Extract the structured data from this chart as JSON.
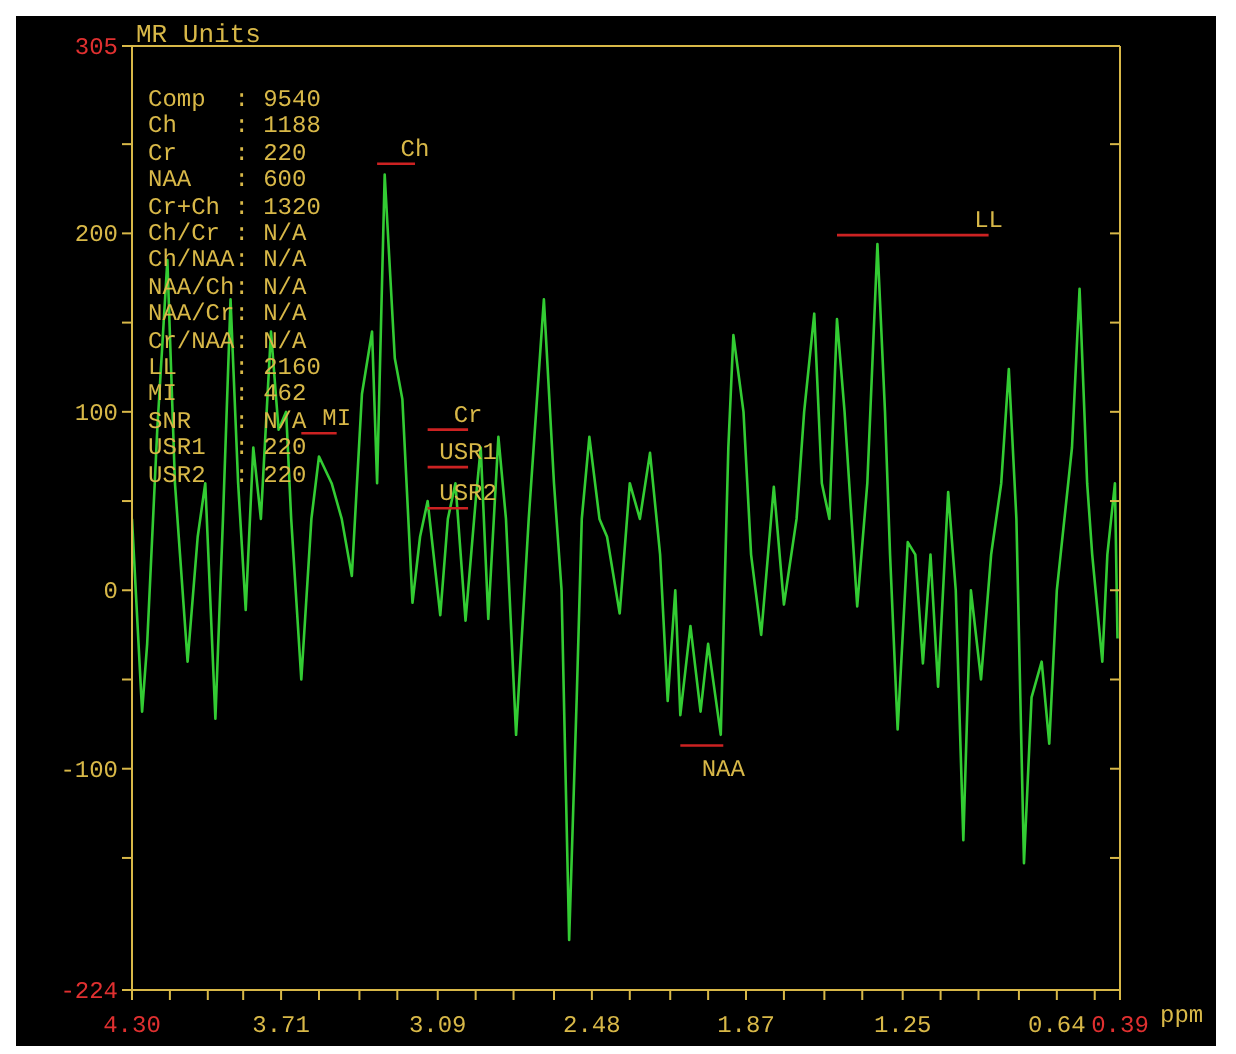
{
  "chart_data": {
    "type": "line",
    "xlabel": "ppm",
    "ylabel": "MR Units",
    "xlim": [
      4.3,
      0.39
    ],
    "xticks": [
      {
        "value": 4.3,
        "label": "4.30"
      },
      {
        "value": 4.15,
        "label": null
      },
      {
        "value": 4.0,
        "label": null
      },
      {
        "value": 3.86,
        "label": null
      },
      3.71,
      {
        "value": 3.56,
        "label": null
      },
      {
        "value": 3.4,
        "label": null
      },
      {
        "value": 3.25,
        "label": null
      },
      3.09,
      {
        "value": 2.94,
        "label": null
      },
      {
        "value": 2.79,
        "label": null
      },
      {
        "value": 2.63,
        "label": null
      },
      2.48,
      {
        "value": 2.33,
        "label": null
      },
      {
        "value": 2.17,
        "label": null
      },
      {
        "value": 2.02,
        "label": null
      },
      1.87,
      {
        "value": 1.72,
        "label": null
      },
      {
        "value": 1.56,
        "label": null
      },
      {
        "value": 1.41,
        "label": null
      },
      1.25,
      {
        "value": 1.1,
        "label": null
      },
      {
        "value": 0.95,
        "label": null
      },
      {
        "value": 0.79,
        "label": null
      },
      0.64,
      {
        "value": 0.49,
        "label": null
      },
      0.39
    ],
    "ylim": [
      -224,
      305
    ],
    "yticks": [
      -224,
      {
        "value": -150,
        "label": null
      },
      -100,
      {
        "value": -50,
        "label": null
      },
      0,
      {
        "value": 50,
        "label": null
      },
      100,
      {
        "value": 150,
        "label": null
      },
      200,
      {
        "value": 250,
        "label": null
      },
      305
    ],
    "series": [
      {
        "color": "#33cc33",
        "x": [
          4.3,
          4.26,
          4.24,
          4.2,
          4.16,
          4.13,
          4.11,
          4.08,
          4.04,
          4.01,
          3.97,
          3.94,
          3.91,
          3.88,
          3.85,
          3.82,
          3.79,
          3.75,
          3.72,
          3.69,
          3.67,
          3.63,
          3.59,
          3.56,
          3.51,
          3.47,
          3.43,
          3.39,
          3.35,
          3.33,
          3.3,
          3.26,
          3.23,
          3.19,
          3.16,
          3.13,
          3.08,
          3.05,
          3.02,
          2.98,
          2.94,
          2.92,
          2.89,
          2.85,
          2.82,
          2.78,
          2.73,
          2.67,
          2.63,
          2.6,
          2.57,
          2.54,
          2.52,
          2.49,
          2.45,
          2.42,
          2.37,
          2.33,
          2.29,
          2.25,
          2.21,
          2.18,
          2.15,
          2.13,
          2.09,
          2.05,
          2.02,
          1.97,
          1.94,
          1.92,
          1.88,
          1.85,
          1.81,
          1.76,
          1.72,
          1.67,
          1.64,
          1.6,
          1.57,
          1.54,
          1.51,
          1.48,
          1.43,
          1.39,
          1.35,
          1.32,
          1.3,
          1.27,
          1.23,
          1.2,
          1.17,
          1.14,
          1.11,
          1.07,
          1.04,
          1.01,
          0.98,
          0.94,
          0.9,
          0.86,
          0.83,
          0.8,
          0.77,
          0.74,
          0.7,
          0.67,
          0.64,
          0.61,
          0.58,
          0.55,
          0.52,
          0.5,
          0.46,
          0.44,
          0.41,
          0.4
        ],
        "values": [
          40,
          -68,
          -30,
          90,
          185,
          60,
          20,
          -40,
          30,
          60,
          -72,
          40,
          163,
          60,
          -11,
          80,
          40,
          145,
          90,
          100,
          40,
          -50,
          40,
          75,
          60,
          40,
          8,
          110,
          145,
          60,
          233,
          130,
          107,
          -7,
          30,
          50,
          -14,
          40,
          60,
          -17,
          50,
          80,
          -16,
          86,
          40,
          -81,
          40,
          163,
          60,
          0,
          -196,
          -60,
          40,
          86,
          40,
          30,
          -13,
          60,
          40,
          77,
          20,
          -62,
          0,
          -70,
          -20,
          -68,
          -30,
          -81,
          80,
          143,
          100,
          20,
          -25,
          58,
          -8,
          40,
          100,
          155,
          60,
          40,
          152,
          100,
          -9,
          60,
          194,
          100,
          20,
          -78,
          27,
          20,
          -41,
          20,
          -54,
          55,
          0,
          -140,
          0,
          -50,
          20,
          60,
          124,
          40,
          -153,
          -60,
          -40,
          -86,
          0,
          40,
          80,
          169,
          60,
          20,
          -40,
          20,
          60,
          -27
        ]
      },
      {
        "name": "Ch",
        "color": "#cc2222",
        "x": [
          3.33,
          3.18
        ],
        "values": [
          239,
          239
        ]
      },
      {
        "name": "MI",
        "color": "#cc2222",
        "x": [
          3.63,
          3.49
        ],
        "values": [
          88,
          88
        ]
      },
      {
        "name": "Cr",
        "color": "#cc2222",
        "x": [
          3.13,
          2.97
        ],
        "values": [
          90,
          90
        ]
      },
      {
        "name": "USR1",
        "color": "#cc2222",
        "x": [
          3.13,
          2.97
        ],
        "values": [
          69,
          69
        ]
      },
      {
        "name": "USR2",
        "color": "#cc2222",
        "x": [
          3.13,
          2.97
        ],
        "values": [
          46,
          46
        ]
      },
      {
        "name": "NAA",
        "color": "#cc2222",
        "x": [
          2.13,
          1.96
        ],
        "values": [
          -87,
          -87
        ]
      },
      {
        "name": "LL",
        "color": "#cc2222",
        "x": [
          1.51,
          0.91
        ],
        "values": [
          199,
          199
        ]
      }
    ],
    "annotations": [
      "Comp  : 9540",
      "Ch    : 1188",
      "Cr    : 220",
      "NAA   : 600",
      "Cr+Ch : 1320",
      "Ch/Cr : N/A",
      "Ch/NAA: N/A",
      "NAA/Ch: N/A",
      "NAA/Cr: N/A",
      "Cr/NAA: N/A",
      "LL    : 2160",
      "MI    : 462",
      "SNR   : N/A",
      "USR1  : 220",
      "USR2  : 220"
    ]
  }
}
